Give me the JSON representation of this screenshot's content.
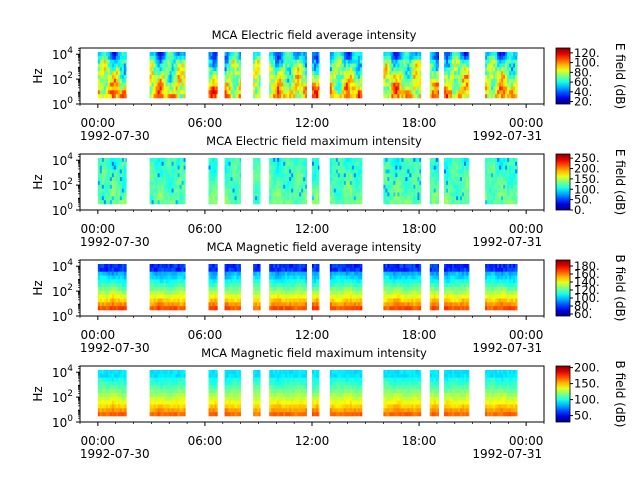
{
  "chart_data": [
    {
      "type": "heatmap",
      "title": "MCA  Electric field average intensity",
      "ylabel": "Hz",
      "colorbar_label": "E field (dB)",
      "colorbar_range": [
        15,
        130
      ],
      "colorbar_ticks": [
        "20.",
        "40.",
        "60.",
        "80.",
        "100.",
        "120."
      ],
      "yticks": [
        {
          "exp": "0"
        },
        {
          "exp": "2"
        },
        {
          "exp": "4"
        }
      ],
      "style": "avg"
    },
    {
      "type": "heatmap",
      "title": "MCA  Electric field maximum intensity",
      "ylabel": "Hz",
      "colorbar_label": "E field (dB)",
      "colorbar_range": [
        0,
        270
      ],
      "colorbar_ticks": [
        "0.",
        "50.",
        "100.",
        "150.",
        "200.",
        "250."
      ],
      "yticks": [
        {
          "exp": "0"
        },
        {
          "exp": "2"
        },
        {
          "exp": "4"
        }
      ],
      "style": "emax"
    },
    {
      "type": "heatmap",
      "title": "MCA  Magnetic field average intensity",
      "ylabel": "Hz",
      "colorbar_label": "B field (dB)",
      "colorbar_range": [
        55,
        195
      ],
      "colorbar_ticks": [
        "60.",
        "80.",
        "100.",
        "120.",
        "140.",
        "160.",
        "180."
      ],
      "yticks": [
        {
          "exp": "0"
        },
        {
          "exp": "2"
        },
        {
          "exp": "4"
        }
      ],
      "style": "bavg"
    },
    {
      "type": "heatmap",
      "title": "MCA  Magnetic field maximum intensity",
      "ylabel": "Hz",
      "colorbar_label": "B field (dB)",
      "colorbar_range": [
        30,
        205
      ],
      "colorbar_ticks": [
        "50.",
        "100.",
        "150.",
        "200."
      ],
      "yticks": [
        {
          "exp": "0"
        },
        {
          "exp": "2"
        },
        {
          "exp": "4"
        }
      ],
      "style": "bmax"
    }
  ],
  "xaxis": {
    "start_hour": -1.0,
    "end_hour": 25.0,
    "ticks": [
      {
        "hour": 0,
        "label": "00:00"
      },
      {
        "hour": 6,
        "label": "06:00"
      },
      {
        "hour": 12,
        "label": "12:00"
      },
      {
        "hour": 18,
        "label": "18:00"
      },
      {
        "hour": 24,
        "label": "00:00"
      }
    ],
    "start_date": "1992-07-30",
    "end_date": "1992-07-31"
  },
  "data_intervals_hours": [
    [
      0.0,
      1.6
    ],
    [
      2.9,
      4.9
    ],
    [
      6.2,
      6.7
    ],
    [
      7.1,
      8.0
    ],
    [
      8.7,
      9.1
    ],
    [
      9.6,
      11.7
    ],
    [
      12.0,
      12.4
    ],
    [
      13.0,
      14.8
    ],
    [
      16.0,
      18.1
    ],
    [
      18.6,
      19.1
    ],
    [
      19.4,
      20.8
    ],
    [
      21.7,
      23.5
    ]
  ]
}
